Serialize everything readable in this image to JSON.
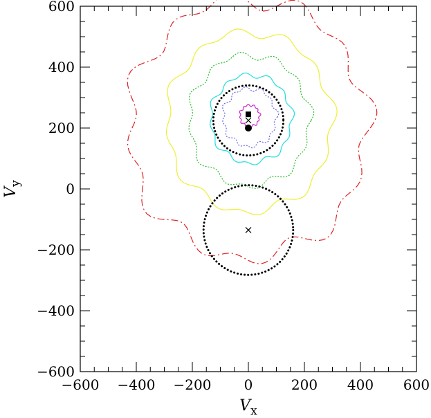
{
  "chart_data": {
    "type": "line",
    "title": "",
    "xlabel": "V",
    "xlabel_sub": "x",
    "ylabel": "V",
    "ylabel_sub": "y",
    "xlim": [
      -600,
      600
    ],
    "ylim": [
      -600,
      600
    ],
    "xticks": [
      -600,
      -400,
      -200,
      0,
      200,
      400,
      600
    ],
    "yticks": [
      -600,
      -400,
      -200,
      0,
      200,
      400,
      600
    ],
    "xtick_labels": [
      "−600",
      "−400",
      "−200",
      "0",
      "200",
      "400",
      "600"
    ],
    "ytick_labels": [
      "−600",
      "−400",
      "−200",
      "0",
      "200",
      "400",
      "600"
    ],
    "grid": false,
    "contours": [
      {
        "center": [
          0,
          200
        ],
        "r": 425,
        "wobble": 0.055,
        "color": "#dd2222",
        "dash": "10,4,2,4"
      },
      {
        "center": [
          5,
          220
        ],
        "r": 295,
        "wobble": 0.04,
        "color": "#eeee33",
        "dash": ""
      },
      {
        "center": [
          5,
          225
        ],
        "r": 215,
        "wobble": 0.045,
        "color": "#22bb22",
        "dash": "2,2"
      },
      {
        "center": [
          10,
          230
        ],
        "r": 145,
        "wobble": 0.045,
        "color": "#22dddd",
        "dash": ""
      },
      {
        "center": [
          5,
          235
        ],
        "r": 95,
        "wobble": 0.06,
        "color": "#6666ee",
        "dash": "2,2"
      },
      {
        "center": [
          5,
          240
        ],
        "r": 35,
        "wobble": 0.08,
        "color": "#cc22cc",
        "dash": ""
      }
    ],
    "figure_eight": {
      "center_x": 0,
      "upper_center": [
        0,
        225
      ],
      "upper_r": 125,
      "lower_center": [
        0,
        -135
      ],
      "lower_r": 160,
      "color": "#000000"
    },
    "markers": [
      {
        "shape": "square",
        "x": 0,
        "y": 245
      },
      {
        "shape": "cross",
        "x": 0,
        "y": 225
      },
      {
        "shape": "circle",
        "x": 0,
        "y": 200
      },
      {
        "shape": "cross",
        "x": 0,
        "y": -135
      }
    ]
  }
}
